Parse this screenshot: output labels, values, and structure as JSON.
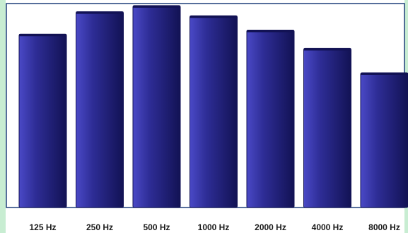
{
  "chart_data": {
    "type": "bar",
    "categories": [
      "125 Hz",
      "250 Hz",
      "500 Hz",
      "1000 Hz",
      "2000 Hz",
      "4000 Hz",
      "8000 Hz"
    ],
    "values": [
      85,
      96,
      99,
      94,
      87,
      78,
      66
    ],
    "title": "",
    "xlabel": "",
    "ylabel": "",
    "ylim": [
      0,
      100
    ],
    "grid": false,
    "legend": "none",
    "colors": {
      "bar": "#2e2d96",
      "bar_dark": "#121254",
      "bar_light": "#4a49c6",
      "plot_background": "#ffffff",
      "border": "#1f3f7a",
      "side_band": "#c8edd2"
    }
  }
}
